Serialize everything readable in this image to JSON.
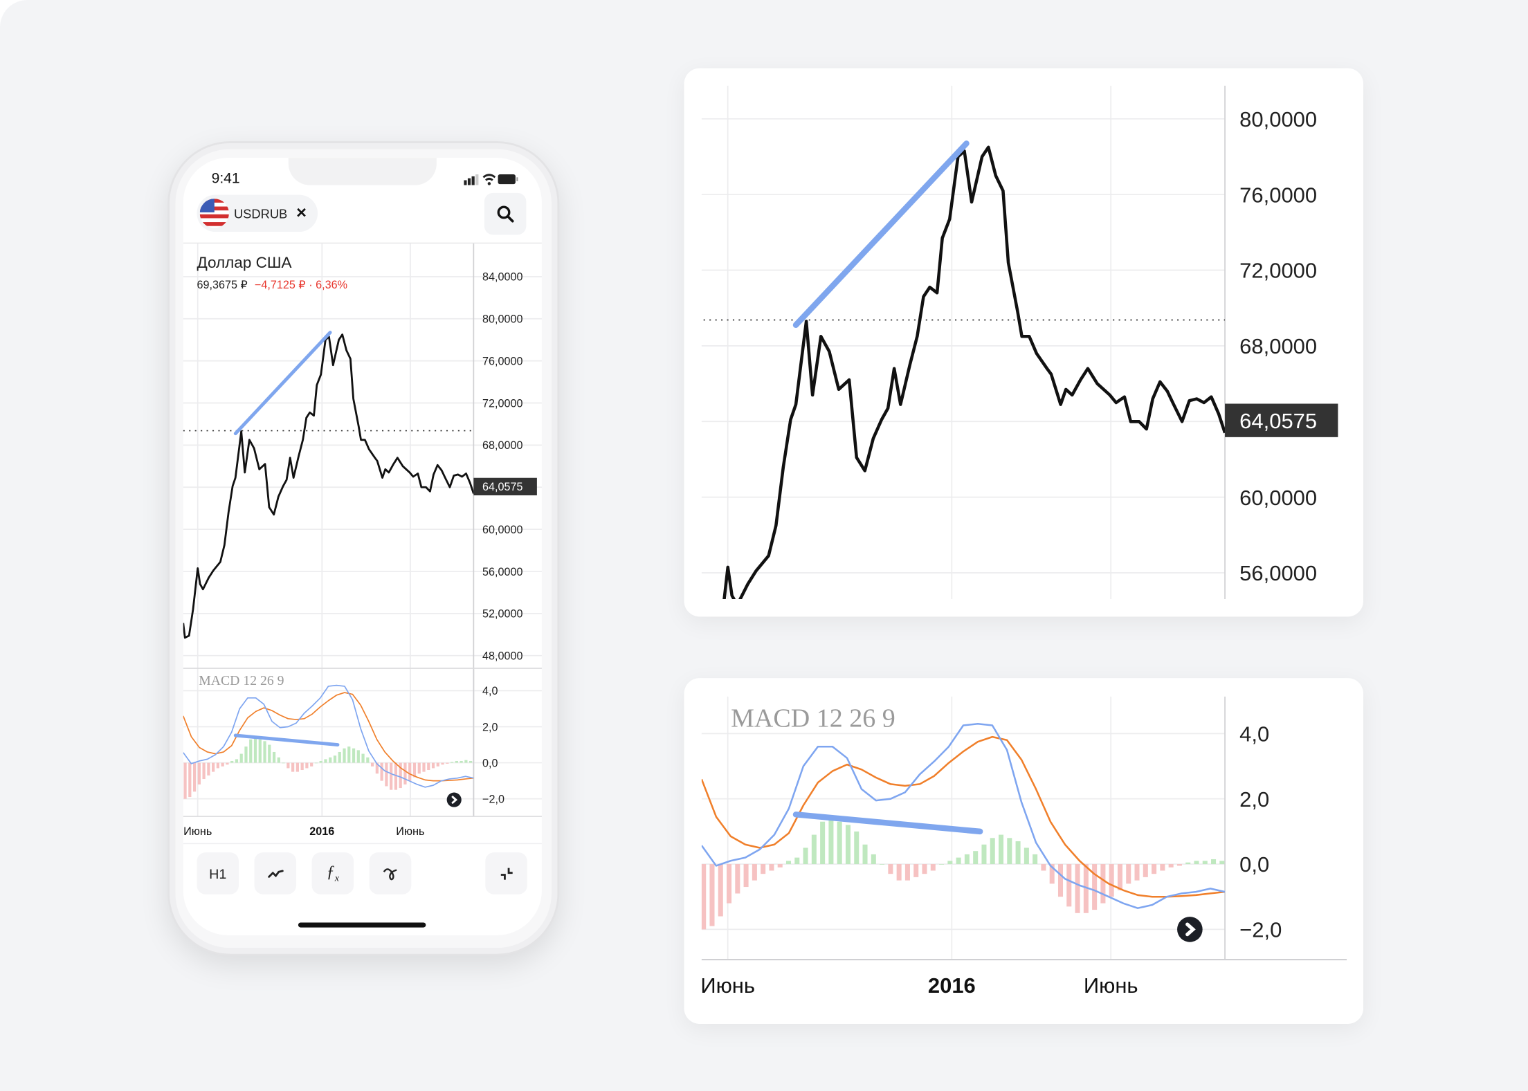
{
  "status_bar": {
    "time": "9:41",
    "icons": [
      "cellular-signal-icon",
      "wifi-icon",
      "battery-icon"
    ]
  },
  "header": {
    "ticker": "USDRUB",
    "flag_icon": "us-flag-icon",
    "close_icon": "close-icon",
    "search_icon": "search-icon"
  },
  "instrument": {
    "name": "Доллар США",
    "price": "69,3675 ₽",
    "change": "−4,7125 ₽ · 6,36%",
    "change_color": "#e8372e"
  },
  "last_price_label": "64,0575",
  "macd_label": "MACD 12 26 9",
  "toolbar": {
    "interval": "H1",
    "chart_type_icon": "line-chart-icon",
    "indicators_icon": "function-fx-icon",
    "drawing_icon": "drawing-tool-icon",
    "collapse_icon": "collapse-icon"
  },
  "scroll_icon": "chevron-right-icon",
  "colors": {
    "price_line": "#111111",
    "trend_line": "#7fa6ee",
    "macd_line": "#7ea5f0",
    "signal_line": "#f07f2a",
    "hist_positive": "#bfe8bf",
    "hist_negative": "#f6c2c2",
    "last_price_bg": "#333333"
  },
  "chart_data": [
    {
      "type": "line",
      "title": "",
      "xlim": [
        "2015-05-07",
        "2016-09-18"
      ],
      "x_ticks": [
        {
          "date": "2015-06-01",
          "label": "Июнь",
          "bold": false
        },
        {
          "date": "2016-01-01",
          "label": "2016",
          "bold": true
        },
        {
          "date": "2016-06-01",
          "label": "Июнь",
          "bold": false
        }
      ],
      "views": {
        "phone": {
          "ylim": [
            48,
            84
          ],
          "ticks": [
            {
              "v": 84,
              "label": "84,0000"
            },
            {
              "v": 80,
              "label": "80,0000"
            },
            {
              "v": 76,
              "label": "76,0000"
            },
            {
              "v": 72,
              "label": "72,0000"
            },
            {
              "v": 68,
              "label": "68,0000"
            },
            {
              "v": 64,
              "label": "64,0575"
            },
            {
              "v": 60,
              "label": "60,0000"
            },
            {
              "v": 56,
              "label": "56,0000"
            },
            {
              "v": 52,
              "label": "52,0000"
            },
            {
              "v": 48,
              "label": "48,0000"
            }
          ]
        },
        "detail": {
          "ylim": [
            56,
            80
          ],
          "ticks": [
            {
              "v": 80,
              "label": "80,0000"
            },
            {
              "v": 76,
              "label": "76,0000"
            },
            {
              "v": 72,
              "label": "72,0000"
            },
            {
              "v": 68,
              "label": "68,0000"
            },
            {
              "v": 64,
              "label": "64,0575"
            },
            {
              "v": 60,
              "label": "60,0000"
            },
            {
              "v": 56,
              "label": "56,0000"
            }
          ]
        }
      },
      "last_value": 64.0575,
      "reference_value": 69.3675,
      "trend_line": [
        [
          "2015-08-05",
          69.1
        ],
        [
          "2016-01-15",
          78.7
        ]
      ],
      "series": [
        {
          "points": [
            [
              "2015-05-07",
              51.1
            ],
            [
              "2015-05-10",
              49.7
            ],
            [
              "2015-05-17",
              49.9
            ],
            [
              "2015-05-24",
              52.4
            ],
            [
              "2015-06-01",
              56.3
            ],
            [
              "2015-06-05",
              54.8
            ],
            [
              "2015-06-10",
              54.3
            ],
            [
              "2015-06-20",
              55.4
            ],
            [
              "2015-06-28",
              56.1
            ],
            [
              "2015-07-10",
              56.9
            ],
            [
              "2015-07-17",
              58.5
            ],
            [
              "2015-07-24",
              61.6
            ],
            [
              "2015-07-31",
              64.1
            ],
            [
              "2015-08-05",
              64.9
            ],
            [
              "2015-08-15",
              69.3
            ],
            [
              "2015-08-21",
              65.4
            ],
            [
              "2015-08-29",
              68.5
            ],
            [
              "2015-09-06",
              67.7
            ],
            [
              "2015-09-15",
              65.7
            ],
            [
              "2015-09-25",
              66.2
            ],
            [
              "2015-10-02",
              62.1
            ],
            [
              "2015-10-10",
              61.4
            ],
            [
              "2015-10-18",
              63.1
            ],
            [
              "2015-10-26",
              64.1
            ],
            [
              "2015-11-01",
              64.7
            ],
            [
              "2015-11-07",
              66.8
            ],
            [
              "2015-11-13",
              64.9
            ],
            [
              "2015-11-22",
              67.0
            ],
            [
              "2015-11-29",
              68.5
            ],
            [
              "2015-12-05",
              70.6
            ],
            [
              "2015-12-11",
              71.1
            ],
            [
              "2015-12-18",
              70.8
            ],
            [
              "2015-12-23",
              73.7
            ],
            [
              "2015-12-30",
              74.7
            ],
            [
              "2016-01-07",
              78.0
            ],
            [
              "2016-01-13",
              78.3
            ],
            [
              "2016-01-20",
              75.6
            ],
            [
              "2016-01-30",
              78.0
            ],
            [
              "2016-02-05",
              78.5
            ],
            [
              "2016-02-12",
              77.0
            ],
            [
              "2016-02-19",
              76.2
            ],
            [
              "2016-02-24",
              72.4
            ],
            [
              "2016-03-04",
              69.8
            ],
            [
              "2016-03-08",
              68.5
            ],
            [
              "2016-03-15",
              68.5
            ],
            [
              "2016-03-22",
              67.6
            ],
            [
              "2016-04-01",
              66.8
            ],
            [
              "2016-04-05",
              66.5
            ],
            [
              "2016-04-14",
              64.9
            ],
            [
              "2016-04-19",
              65.7
            ],
            [
              "2016-04-25",
              65.4
            ],
            [
              "2016-05-03",
              66.2
            ],
            [
              "2016-05-10",
              66.8
            ],
            [
              "2016-05-19",
              66.0
            ],
            [
              "2016-05-31",
              65.4
            ],
            [
              "2016-06-06",
              65.0
            ],
            [
              "2016-06-14",
              65.3
            ],
            [
              "2016-06-20",
              64.0
            ],
            [
              "2016-06-28",
              64.0
            ],
            [
              "2016-07-05",
              63.6
            ],
            [
              "2016-07-11",
              65.2
            ],
            [
              "2016-07-18",
              66.1
            ],
            [
              "2016-07-25",
              65.6
            ],
            [
              "2016-07-31",
              64.9
            ],
            [
              "2016-08-08",
              64.0
            ],
            [
              "2016-08-15",
              65.1
            ],
            [
              "2016-08-22",
              65.2
            ],
            [
              "2016-08-29",
              65.0
            ],
            [
              "2016-09-05",
              65.3
            ],
            [
              "2016-09-12",
              64.4
            ],
            [
              "2016-09-18",
              63.4
            ]
          ]
        }
      ]
    },
    {
      "type": "line",
      "title": "MACD 12 26 9",
      "xlim": [
        "2015-05-07",
        "2016-09-18"
      ],
      "ylim": [
        -2.6,
        5.0
      ],
      "ticks": [
        {
          "v": 4,
          "label": "4,0"
        },
        {
          "v": 2,
          "label": "2,0"
        },
        {
          "v": 0,
          "label": "0,0"
        },
        {
          "v": -2,
          "label": "−2,0"
        }
      ],
      "trend_line": [
        [
          "2015-08-05",
          1.52
        ],
        [
          "2016-01-28",
          1.0
        ]
      ],
      "macd": [
        0.57,
        -0.05,
        0.1,
        0.2,
        0.45,
        0.9,
        1.7,
        3.0,
        3.6,
        3.6,
        3.25,
        2.3,
        1.95,
        2.0,
        2.2,
        2.75,
        3.15,
        3.6,
        4.25,
        4.3,
        4.25,
        3.5,
        1.9,
        0.66,
        -0.05,
        -0.45,
        -0.65,
        -0.8,
        -1.0,
        -1.2,
        -1.35,
        -1.25,
        -1.0,
        -0.9,
        -0.85,
        -0.75,
        -0.85
      ],
      "signal": [
        2.6,
        1.45,
        0.85,
        0.6,
        0.5,
        0.6,
        0.95,
        1.8,
        2.5,
        2.85,
        3.05,
        2.9,
        2.65,
        2.45,
        2.4,
        2.45,
        2.7,
        3.1,
        3.45,
        3.75,
        3.9,
        3.8,
        3.2,
        2.3,
        1.3,
        0.6,
        0.1,
        -0.3,
        -0.6,
        -0.8,
        -0.95,
        -1.0,
        -1.0,
        -0.98,
        -0.95,
        -0.9,
        -0.85
      ],
      "histogram": [
        -2.0,
        -1.9,
        -1.6,
        -1.2,
        -0.9,
        -0.7,
        -0.5,
        -0.3,
        -0.2,
        -0.1,
        0.1,
        0.2,
        0.5,
        0.9,
        1.3,
        1.4,
        1.3,
        1.2,
        1.0,
        0.6,
        0.3,
        0,
        -0.3,
        -0.5,
        -0.5,
        -0.4,
        -0.3,
        -0.2,
        0,
        0.1,
        0.2,
        0.3,
        0.4,
        0.6,
        0.8,
        0.9,
        0.8,
        0.7,
        0.5,
        0.3,
        -0.2,
        -0.6,
        -1.0,
        -1.3,
        -1.5,
        -1.5,
        -1.4,
        -1.2,
        -1.0,
        -0.8,
        -0.6,
        -0.5,
        -0.4,
        -0.3,
        -0.2,
        -0.1,
        -0.05,
        0.05,
        0.1,
        0.1,
        0.15,
        0.1
      ]
    }
  ]
}
